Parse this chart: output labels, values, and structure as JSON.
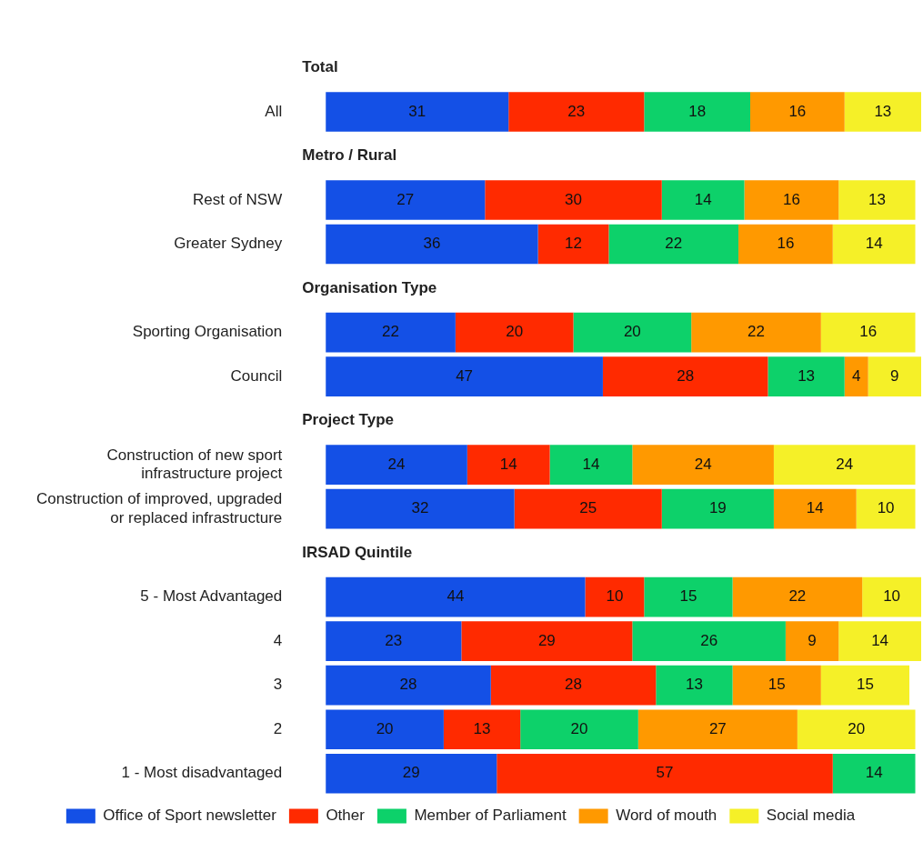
{
  "chart_data": {
    "type": "bar",
    "orientation": "horizontal",
    "stacked": true,
    "data_labels": true,
    "legend": "bottom",
    "tick_labels": "y",
    "xlim": [
      0,
      101
    ],
    "categories": [
      "Total",
      "All",
      "Metro / Rural",
      "Rest of NSW",
      "Greater Sydney",
      "Organisation Type",
      "Sporting Organisation",
      "Council",
      "Project Type",
      "Construction of new sport\ninfrastructure project",
      "Construction of improved, upgraded\nor replaced infrastructure",
      "IRSAD Quintile",
      "5 - Most Advantaged",
      "4",
      "3",
      "2",
      "1 - Most disadvantaged"
    ],
    "series": [
      {
        "name": "Office of Sport newsletter",
        "color": "#1450e6",
        "values": [
          null,
          31,
          null,
          27,
          36,
          null,
          22,
          47,
          null,
          24,
          32,
          null,
          44,
          23,
          28,
          20,
          29
        ]
      },
      {
        "name": "Other",
        "color": "#ff2a00",
        "values": [
          null,
          23,
          null,
          30,
          12,
          null,
          20,
          28,
          null,
          14,
          25,
          null,
          10,
          29,
          28,
          13,
          57
        ]
      },
      {
        "name": "Member of Parliament",
        "color": "#0dd16a",
        "values": [
          null,
          18,
          null,
          14,
          22,
          null,
          20,
          13,
          null,
          14,
          19,
          null,
          15,
          26,
          13,
          20,
          14
        ]
      },
      {
        "name": "Word of mouth",
        "color": "#ff9900",
        "values": [
          null,
          16,
          null,
          16,
          16,
          null,
          22,
          4,
          null,
          24,
          14,
          null,
          22,
          9,
          15,
          27,
          null
        ]
      },
      {
        "name": "Social media",
        "color": "#f5f028",
        "values": [
          null,
          13,
          null,
          13,
          14,
          null,
          16,
          9,
          null,
          24,
          10,
          null,
          10,
          14,
          15,
          20,
          null
        ]
      }
    ]
  }
}
